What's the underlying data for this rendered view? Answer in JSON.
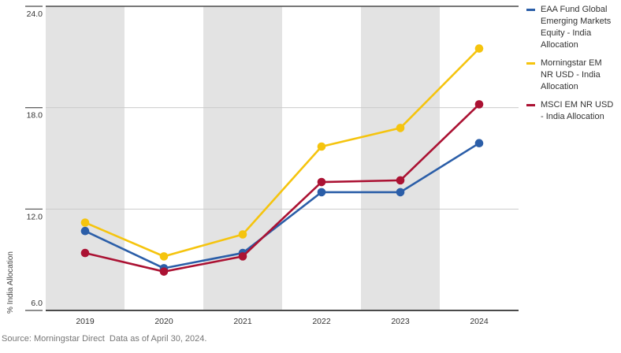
{
  "chart_data": {
    "type": "line",
    "x_categories": [
      "2019",
      "2020",
      "2021",
      "2022",
      "2023",
      "2024"
    ],
    "series": [
      {
        "name": "EAA Fund Global Emerging Markets Equity - India Allocation",
        "color": "#2B5EA8",
        "values": [
          10.7,
          8.5,
          9.4,
          13.0,
          13.0,
          15.9
        ]
      },
      {
        "name": "Morningstar EM NR USD - India Allocation",
        "color": "#F5C40E",
        "values": [
          11.2,
          9.2,
          10.5,
          15.7,
          16.8,
          21.5
        ]
      },
      {
        "name": "MSCI EM NR USD - India Allocation",
        "color": "#AB1233",
        "values": [
          9.4,
          8.3,
          9.2,
          13.6,
          13.7,
          18.2
        ]
      }
    ],
    "title": "",
    "xlabel": "",
    "ylabel": "% India Allocation",
    "ylim": [
      6,
      24
    ],
    "yticks": [
      6,
      12,
      18,
      24
    ],
    "ytick_labels": [
      "6.0",
      "12.0",
      "18.0",
      "24.0"
    ],
    "legend_position": "right",
    "grid": "horizontal-only",
    "band_style": "alternating-gray-year-bands"
  },
  "footer": {
    "source": "Source: Morningstar Direct  Data as of April 30, 2024."
  },
  "colors": {
    "band": "#E3E3E3",
    "gridline": "#CBCBCB",
    "axis": "#4A4A4A",
    "tick_text": "#333333",
    "axis_title_text": "#444444",
    "source_text": "#767676"
  }
}
